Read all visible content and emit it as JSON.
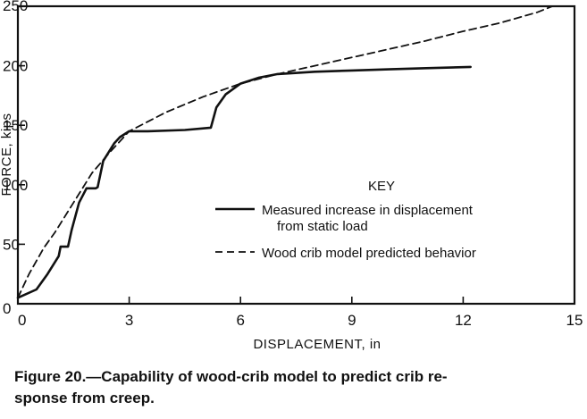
{
  "chart_data": {
    "type": "line",
    "title": "",
    "xlabel": "DISPLACEMENT, in",
    "ylabel": "FORCE, kips",
    "xlim": [
      0,
      15
    ],
    "ylim": [
      0,
      250
    ],
    "xticks": [
      0,
      3,
      6,
      9,
      12,
      15
    ],
    "yticks": [
      0,
      50,
      100,
      150,
      200,
      250
    ],
    "xtick_labels": [
      "0",
      "3",
      "6",
      "9",
      "12",
      "15"
    ],
    "ytick_labels": [
      "0",
      "50",
      "100",
      "150",
      "200",
      "250"
    ],
    "grid": false,
    "legend": {
      "title": "KEY",
      "position": "center-right",
      "entries": [
        {
          "label_line1": "Measured increase in displacement",
          "label_line2": "from static load",
          "style": "solid"
        },
        {
          "label_line1": "Wood crib model predicted behavior",
          "label_line2": "",
          "style": "dashed"
        }
      ]
    },
    "series": [
      {
        "name": "Measured increase in displacement from static load",
        "style": "solid",
        "color": "#111111",
        "points": [
          [
            0,
            5
          ],
          [
            0.5,
            12
          ],
          [
            0.8,
            25
          ],
          [
            1.1,
            40
          ],
          [
            1.15,
            48
          ],
          [
            1.35,
            48
          ],
          [
            1.45,
            62
          ],
          [
            1.65,
            85
          ],
          [
            1.85,
            97
          ],
          [
            2.1,
            97
          ],
          [
            2.15,
            98
          ],
          [
            2.3,
            120
          ],
          [
            2.6,
            135
          ],
          [
            2.75,
            140
          ],
          [
            3.0,
            145
          ],
          [
            3.5,
            145
          ],
          [
            4.5,
            146
          ],
          [
            5.2,
            148
          ],
          [
            5.35,
            165
          ],
          [
            5.6,
            176
          ],
          [
            6.0,
            185
          ],
          [
            6.5,
            190
          ],
          [
            7.0,
            193
          ],
          [
            8.0,
            195
          ],
          [
            9.0,
            196
          ],
          [
            10.0,
            197
          ],
          [
            11.0,
            198
          ],
          [
            12.2,
            199
          ]
        ]
      },
      {
        "name": "Wood crib model predicted behavior",
        "style": "dashed",
        "color": "#111111",
        "points": [
          [
            0,
            5
          ],
          [
            0.3,
            25
          ],
          [
            0.7,
            47
          ],
          [
            1,
            60
          ],
          [
            1.5,
            85
          ],
          [
            2,
            110
          ],
          [
            2.5,
            128
          ],
          [
            3,
            145
          ],
          [
            3.5,
            153
          ],
          [
            4,
            161
          ],
          [
            5,
            174
          ],
          [
            6,
            185
          ],
          [
            7,
            193
          ],
          [
            8,
            200
          ],
          [
            9,
            207
          ],
          [
            10,
            214
          ],
          [
            11,
            221
          ],
          [
            12,
            229
          ],
          [
            13,
            236
          ],
          [
            14,
            245
          ],
          [
            14.4,
            250
          ]
        ]
      }
    ]
  },
  "caption": {
    "line1": "Figure 20.—Capability of wood-crib model to predict crib re-",
    "line2": "sponse from creep."
  }
}
